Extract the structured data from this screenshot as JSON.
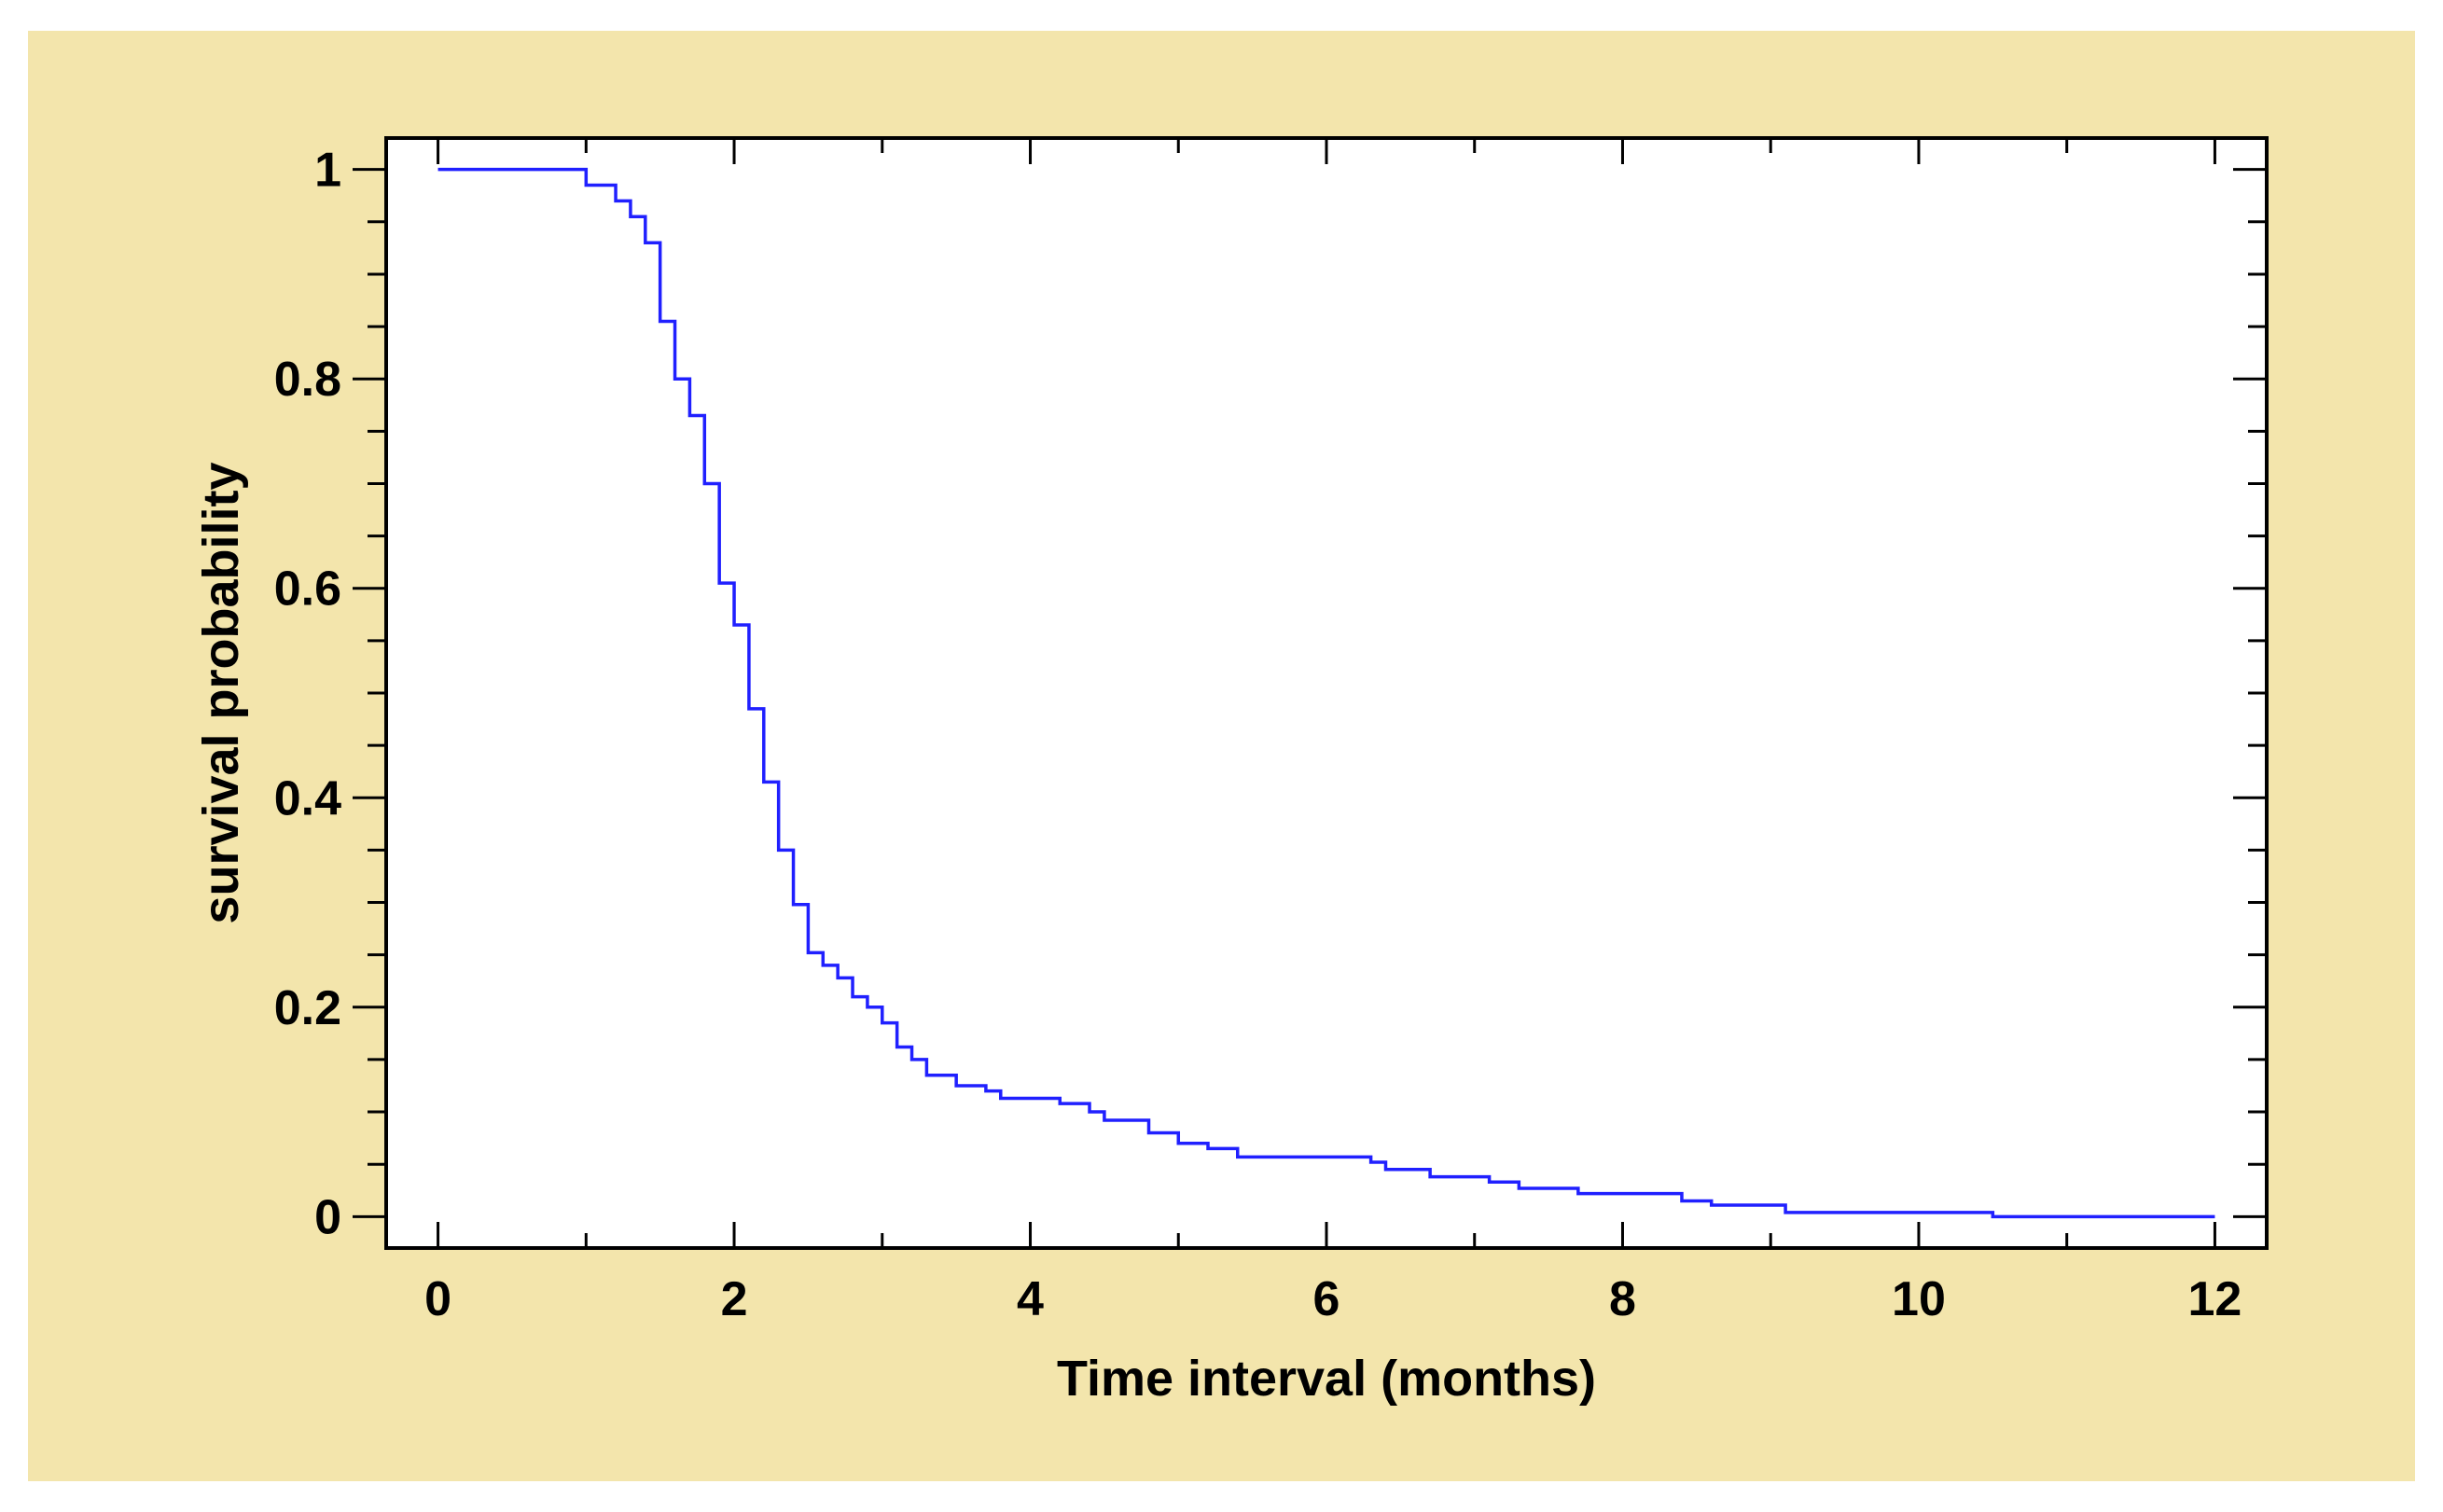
{
  "colors": {
    "frame": "#f3e5ac",
    "plot_bg": "#ffffff",
    "line": "#2020ff",
    "axis": "#000000"
  },
  "chart_data": {
    "type": "line",
    "step": true,
    "title": "",
    "xlabel": "Time interval (months)",
    "ylabel": "survival probability",
    "xlim": [
      -0.35,
      12.35
    ],
    "ylim": [
      -0.03,
      1.03
    ],
    "x_ticks": [
      0,
      2,
      4,
      6,
      8,
      10,
      12
    ],
    "x_tick_labels": [
      "0",
      "2",
      "4",
      "6",
      "8",
      "10",
      "12"
    ],
    "y_ticks": [
      0,
      0.2,
      0.4,
      0.6,
      0.8,
      1
    ],
    "y_tick_labels": [
      "0",
      "0.2",
      "0.4",
      "0.6",
      "0.8",
      "1"
    ],
    "grid": false,
    "legend": "none",
    "series": [
      {
        "x": [
          0,
          1.0,
          1.2,
          1.3,
          1.4,
          1.5,
          1.6,
          1.7,
          1.8,
          1.9,
          2.0,
          2.1,
          2.2,
          2.3,
          2.4,
          2.5,
          2.6,
          2.7,
          2.8,
          2.9,
          3.0,
          3.1,
          3.2,
          3.3,
          3.5,
          3.7,
          3.8,
          4.2,
          4.4,
          4.5,
          4.8,
          5.0,
          5.2,
          5.4,
          6.3,
          6.4,
          6.7,
          7.1,
          7.3,
          7.7,
          8.4,
          8.6,
          9.1,
          10.5,
          12.0
        ],
        "y": [
          1.0,
          0.985,
          0.97,
          0.955,
          0.93,
          0.855,
          0.8,
          0.765,
          0.7,
          0.605,
          0.565,
          0.485,
          0.415,
          0.35,
          0.298,
          0.252,
          0.24,
          0.228,
          0.21,
          0.2,
          0.185,
          0.162,
          0.15,
          0.135,
          0.125,
          0.12,
          0.113,
          0.108,
          0.1,
          0.092,
          0.08,
          0.07,
          0.065,
          0.057,
          0.052,
          0.045,
          0.038,
          0.033,
          0.027,
          0.022,
          0.015,
          0.011,
          0.004,
          0.0,
          0.0
        ]
      }
    ]
  }
}
